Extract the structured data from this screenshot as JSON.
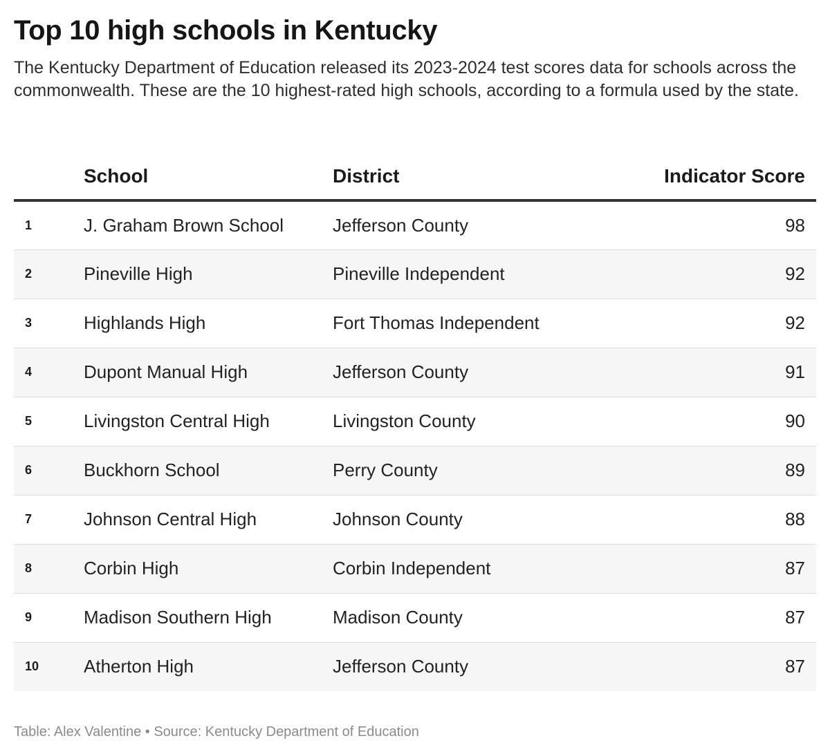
{
  "header": {
    "title": "Top 10 high schools in Kentucky",
    "subtitle": "The Kentucky Department of Education released its 2023-2024 test scores data for schools across the commonwealth. These are the 10 highest-rated high schools, according to a formula used by the state."
  },
  "chart_data": {
    "type": "table",
    "title": "Top 10 high schools in Kentucky",
    "columns": [
      "",
      "School",
      "District",
      "Indicator Score"
    ],
    "rows": [
      {
        "rank": "1",
        "school": "J. Graham Brown School",
        "district": "Jefferson County",
        "score": 98
      },
      {
        "rank": "2",
        "school": "Pineville High",
        "district": "Pineville Independent",
        "score": 92
      },
      {
        "rank": "3",
        "school": "Highlands High",
        "district": "Fort Thomas Independent",
        "score": 92
      },
      {
        "rank": "4",
        "school": "Dupont Manual High",
        "district": "Jefferson County",
        "score": 91
      },
      {
        "rank": "5",
        "school": "Livingston Central High",
        "district": "Livingston County",
        "score": 90
      },
      {
        "rank": "6",
        "school": "Buckhorn School",
        "district": "Perry County",
        "score": 89
      },
      {
        "rank": "7",
        "school": "Johnson Central High",
        "district": "Johnson County",
        "score": 88
      },
      {
        "rank": "8",
        "school": "Corbin High",
        "district": "Corbin Independent",
        "score": 87
      },
      {
        "rank": "9",
        "school": "Madison Southern High",
        "district": "Madison County",
        "score": 87
      },
      {
        "rank": "10",
        "school": "Atherton High",
        "district": "Jefferson County",
        "score": 87
      }
    ]
  },
  "footer": {
    "credit": "Table: Alex Valentine • Source: Kentucky Department of Education"
  },
  "colors": {
    "header_rule": "#333333",
    "stripe": "#f6f6f6",
    "footer_text": "#8a8a8a"
  }
}
